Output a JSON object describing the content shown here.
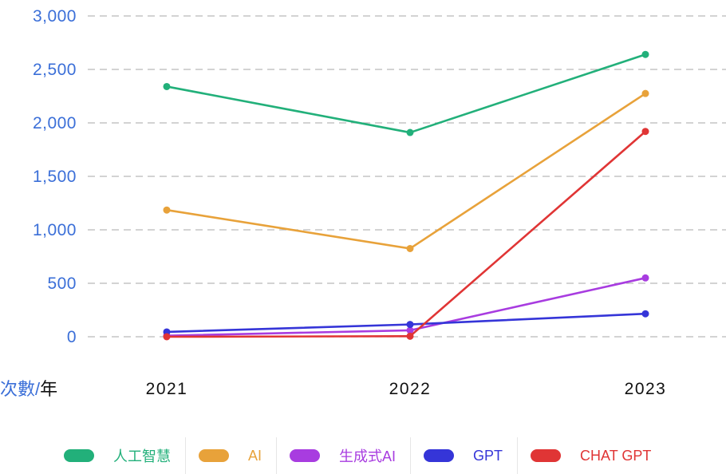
{
  "chart_data": {
    "type": "line",
    "categories": [
      "2021",
      "2022",
      "2023"
    ],
    "yticks": [
      "3,000",
      "2,500",
      "2,000",
      "1,500",
      "1,000",
      "500",
      "0"
    ],
    "ylim": [
      0,
      3000
    ],
    "grid": true,
    "legend_position": "bottom",
    "axis_label": {
      "main": "次數",
      "separator": "/",
      "unit": "年"
    },
    "series": [
      {
        "name": "人工智慧",
        "color": "#22b07a",
        "values": [
          2340,
          1910,
          2640
        ]
      },
      {
        "name": "AI",
        "color": "#e8a23a",
        "values": [
          1185,
          825,
          2275
        ]
      },
      {
        "name": "生成式AI",
        "color": "#a83ce0",
        "values": [
          10,
          60,
          550
        ]
      },
      {
        "name": "GPT",
        "color": "#3535d8",
        "values": [
          45,
          115,
          215
        ]
      },
      {
        "name": "CHAT GPT",
        "color": "#e03535",
        "values": [
          0,
          5,
          1920
        ]
      }
    ]
  }
}
